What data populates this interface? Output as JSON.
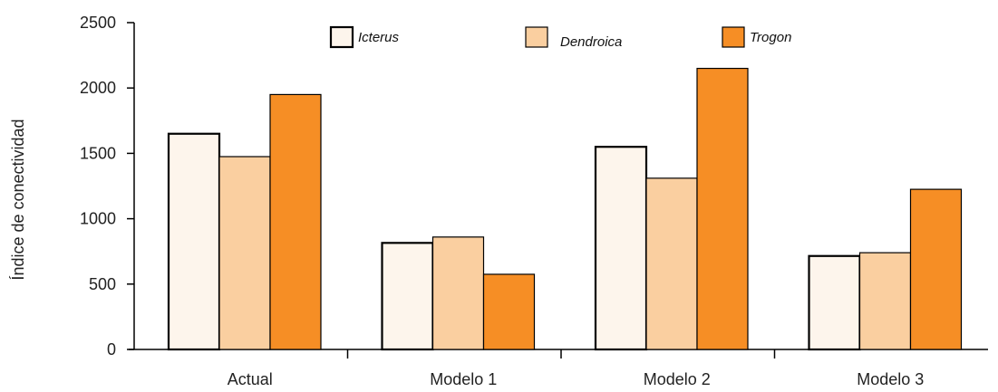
{
  "chart_data": {
    "type": "bar",
    "categories": [
      "Actual",
      "Modelo 1",
      "Modelo 2",
      "Modelo 3"
    ],
    "series": [
      {
        "name": "Icterus",
        "color": "#fdf5ec",
        "values": [
          1650,
          815,
          1550,
          715
        ]
      },
      {
        "name": "Dendroica",
        "color": "#facfa0",
        "values": [
          1475,
          860,
          1310,
          740
        ]
      },
      {
        "name": "Trogon",
        "color": "#f68e25",
        "values": [
          1950,
          575,
          2150,
          1225
        ]
      }
    ],
    "title": "",
    "xlabel": "",
    "ylabel": "Índice de conectividad",
    "yticks": [
      "0",
      "500",
      "1000",
      "1500",
      "2000",
      "2500"
    ],
    "ylim": [
      0,
      2500
    ],
    "grid": false,
    "legend": "top"
  }
}
